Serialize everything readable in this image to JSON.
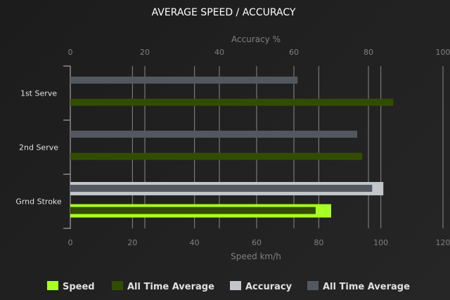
{
  "chart_data": {
    "type": "bar",
    "orientation": "horizontal",
    "title": "AVERAGE SPEED / ACCURACY",
    "categories": [
      "1st Serve",
      "2nd Serve",
      "Grnd Stroke"
    ],
    "x_axis_bottom": {
      "label": "Speed km/h",
      "range": [
        0,
        120
      ],
      "ticks": [
        0,
        20,
        40,
        60,
        80,
        100,
        120
      ]
    },
    "x_axis_top": {
      "label": "Accuracy %",
      "range": [
        0,
        100
      ],
      "ticks": [
        0,
        20,
        40,
        60,
        80,
        100
      ]
    },
    "grid": true,
    "legend_position": "bottom",
    "series": [
      {
        "name": "Speed",
        "axis": "speed",
        "color": "#aaff22",
        "values": [
          null,
          null,
          84
        ]
      },
      {
        "name": "All Time Average",
        "axis": "speed",
        "color": "#334d00",
        "values": [
          104,
          94,
          79
        ]
      },
      {
        "name": "Accuracy",
        "axis": "accuracy",
        "color": "#c2c6ca",
        "values": [
          null,
          null,
          84
        ]
      },
      {
        "name": "All Time Average",
        "axis": "accuracy",
        "color": "#535860",
        "values": [
          61,
          77,
          81
        ]
      }
    ]
  }
}
